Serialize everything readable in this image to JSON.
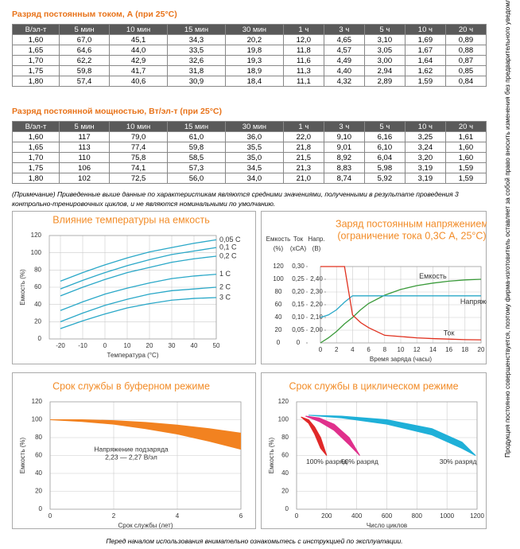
{
  "tables": [
    {
      "title": "Разряд постоянным током, А (при 25°C)",
      "header": [
        "В/эл-т",
        "5 мин",
        "10 мин",
        "15 мин",
        "30 мин",
        "1 ч",
        "3 ч",
        "5 ч",
        "10 ч",
        "20 ч"
      ],
      "rows": [
        [
          "1,60",
          "67,0",
          "45,1",
          "34,3",
          "20,2",
          "12,0",
          "4,65",
          "3,10",
          "1,69",
          "0,89"
        ],
        [
          "1,65",
          "64,6",
          "44,0",
          "33,5",
          "19,8",
          "11,8",
          "4,57",
          "3,05",
          "1,67",
          "0,88"
        ],
        [
          "1,70",
          "62,2",
          "42,9",
          "32,6",
          "19,3",
          "11,6",
          "4,49",
          "3,00",
          "1,64",
          "0,87"
        ],
        [
          "1,75",
          "59,8",
          "41,7",
          "31,8",
          "18,9",
          "11,3",
          "4,40",
          "2,94",
          "1,62",
          "0,85"
        ],
        [
          "1,80",
          "57,4",
          "40,6",
          "30,9",
          "18,4",
          "11,1",
          "4,32",
          "2,89",
          "1,59",
          "0,84"
        ]
      ]
    },
    {
      "title": "Разряд постоянной мощностью, Вт/эл-т (при 25°C)",
      "header": [
        "В/эл-т",
        "5 мин",
        "10 мин",
        "15 мин",
        "30 мин",
        "1 ч",
        "3 ч",
        "5 ч",
        "10 ч",
        "20 ч"
      ],
      "rows": [
        [
          "1,60",
          "117",
          "79,0",
          "61,0",
          "36,0",
          "22,0",
          "9,10",
          "6,16",
          "3,25",
          "1,61"
        ],
        [
          "1,65",
          "113",
          "77,4",
          "59,8",
          "35,5",
          "21,8",
          "9,01",
          "6,10",
          "3,24",
          "1,60"
        ],
        [
          "1,70",
          "110",
          "75,8",
          "58,5",
          "35,0",
          "21,5",
          "8,92",
          "6,04",
          "3,20",
          "1,60"
        ],
        [
          "1,75",
          "106",
          "74,1",
          "57,3",
          "34,5",
          "21,3",
          "8,83",
          "5,98",
          "3,19",
          "1,59"
        ],
        [
          "1,80",
          "102",
          "72,5",
          "56,0",
          "34,0",
          "21,0",
          "8,74",
          "5,92",
          "3,19",
          "1,59"
        ]
      ]
    }
  ],
  "note": "(Примечание) Приведенные выше данные по характеристикам являются средними значениями, полученными в результате проведения 3 контрольно-тренировочных циклов, и не являются номинальными по умолчанию.",
  "side_text": "Продукция постоянно совершенствуется, поэтому фирма-изготовитель оставляет за собой право вносить изменения без предварительного уведомления.",
  "footer": "Перед началом использования внимательно ознакомьтесь с инструкцией по эксплуатации.",
  "chart_data": [
    {
      "type": "line",
      "title": "Влияние температуры на емкость",
      "xlabel": "Температура (°C)",
      "ylabel": "Емкость (%)",
      "xlim": [
        -25,
        50
      ],
      "xticks": [
        -20,
        -10,
        0,
        10,
        20,
        30,
        40,
        50
      ],
      "ylim": [
        0,
        120
      ],
      "yticks": [
        0,
        20,
        40,
        60,
        80,
        100,
        120
      ],
      "grid": true,
      "x": [
        -20,
        -10,
        0,
        10,
        20,
        30,
        40,
        50
      ],
      "series": [
        {
          "name": "0,05 C",
          "color": "#2aa8c8",
          "values": [
            67,
            77,
            86,
            94,
            101,
            106,
            111,
            115
          ]
        },
        {
          "name": "0,1 C",
          "color": "#2aa8c8",
          "values": [
            58,
            68,
            77,
            85,
            92,
            98,
            102,
            106
          ]
        },
        {
          "name": "0,2 C",
          "color": "#2aa8c8",
          "values": [
            50,
            60,
            69,
            77,
            83,
            89,
            93,
            96
          ]
        },
        {
          "name": "1 C",
          "color": "#2aa8c8",
          "values": [
            33,
            43,
            52,
            59,
            65,
            70,
            73,
            75
          ]
        },
        {
          "name": "2 C",
          "color": "#2aa8c8",
          "values": [
            20,
            30,
            39,
            46,
            52,
            56,
            58,
            60
          ]
        },
        {
          "name": "3 C",
          "color": "#2aa8c8",
          "values": [
            12,
            21,
            29,
            36,
            41,
            45,
            47,
            48
          ]
        }
      ]
    },
    {
      "type": "line",
      "title": "Заряд постоянным напряжением",
      "subtitle": "(ограничение тока 0,3С А, 25°C)",
      "xlabel": "Время заряда (часы)",
      "ylabel": "Емкость",
      "yunit": "(%)",
      "y2label": "Ток",
      "y2unit": "(хСА)",
      "y3label": "Напр.",
      "y3unit": "(В)",
      "xlim": [
        0,
        20
      ],
      "xticks": [
        0,
        2,
        4,
        6,
        8,
        10,
        12,
        14,
        16,
        18,
        20
      ],
      "ylim": [
        0,
        120
      ],
      "yticks": [
        0,
        20,
        40,
        60,
        80,
        100,
        120
      ],
      "y2lim": [
        0,
        0.3
      ],
      "y2ticks": [
        0,
        {
          "value": 0.05,
          "label": "0,05"
        },
        {
          "value": 0.1,
          "label": "0,10"
        },
        {
          "value": 0.15,
          "label": "0,15"
        },
        {
          "value": 0.2,
          "label": "0,20"
        },
        {
          "value": 0.25,
          "label": "0,25"
        },
        {
          "value": 0.3,
          "label": "0,30"
        }
      ],
      "y3lim": [
        1.9,
        2.5
      ],
      "y3ticks": [
        {
          "value": 2.0,
          "label": "2,00"
        },
        {
          "value": 2.1,
          "label": "2,10"
        },
        {
          "value": 2.2,
          "label": "2,20"
        },
        {
          "value": 2.3,
          "label": "2,30"
        },
        {
          "value": 2.4,
          "label": "2,40"
        }
      ],
      "grid": true,
      "x": [
        0,
        1,
        2,
        3,
        4,
        5,
        6,
        8,
        10,
        12,
        14,
        16,
        18,
        20
      ],
      "series": [
        {
          "name": "Емкость",
          "color": "#3a9a3a",
          "values": [
            0,
            8,
            18,
            30,
            40,
            52,
            62,
            75,
            84,
            90,
            94,
            97,
            99,
            100
          ]
        },
        {
          "name": "Напряжение",
          "color": "#2aa8c8",
          "axis": "y3",
          "values": [
            2.1,
            2.12,
            2.16,
            2.22,
            2.27,
            2.27,
            2.27,
            2.27,
            2.27,
            2.27,
            2.27,
            2.27,
            2.27,
            2.27
          ]
        },
        {
          "name": "Ток",
          "color": "#e0301e",
          "axis": "y2",
          "values": [
            0.3,
            0.3,
            0.3,
            0.3,
            0.11,
            0.08,
            0.06,
            0.03,
            0.025,
            0.02,
            0.017,
            0.015,
            0.013,
            0.012
          ]
        }
      ]
    },
    {
      "type": "band",
      "title": "Срок службы в буферном режиме",
      "xlabel": "Срок службы (лет)",
      "ylabel": "Емкость (%)",
      "annotation": [
        "Напряжение подзаряда",
        "2,23 — 2,27 В/эл"
      ],
      "xlim": [
        0,
        6
      ],
      "xticks": [
        0,
        2,
        4,
        6
      ],
      "ylim": [
        0,
        120
      ],
      "yticks": [
        0,
        20,
        40,
        60,
        80,
        100,
        120
      ],
      "grid": true,
      "series": [
        {
          "color": "#f28220",
          "x": [
            0,
            1,
            2,
            3,
            4,
            5,
            6
          ],
          "high": [
            100,
            100,
            99,
            97,
            94,
            90,
            85
          ],
          "low": [
            100,
            98,
            95,
            90,
            84,
            76,
            67
          ]
        }
      ]
    },
    {
      "type": "band",
      "title": "Срок службы в циклическом режиме",
      "xlabel": "Число циклов",
      "ylabel": "Емкость (%)",
      "xlim": [
        0,
        1200
      ],
      "xticks": [
        0,
        200,
        400,
        600,
        800,
        1000,
        1200
      ],
      "ylim": [
        0,
        120
      ],
      "yticks": [
        0,
        20,
        40,
        60,
        80,
        100,
        120
      ],
      "grid": true,
      "series": [
        {
          "name": "100% разряд",
          "color": "#e02828",
          "x": [
            30,
            80,
            120,
            160,
            200
          ],
          "high": [
            103,
            100,
            92,
            80,
            60
          ],
          "low": [
            103,
            96,
            84,
            68,
            60
          ]
        },
        {
          "name": "50% разряд",
          "color": "#e0308c",
          "x": [
            60,
            150,
            250,
            350,
            420
          ],
          "high": [
            104,
            102,
            95,
            80,
            60
          ],
          "low": [
            104,
            98,
            88,
            72,
            60
          ]
        },
        {
          "name": "30% разряд",
          "color": "#1fb0d8",
          "x": [
            80,
            300,
            600,
            900,
            1100,
            1190
          ],
          "high": [
            105,
            104,
            100,
            90,
            75,
            60
          ],
          "low": [
            105,
            102,
            95,
            83,
            68,
            60
          ]
        }
      ]
    }
  ]
}
